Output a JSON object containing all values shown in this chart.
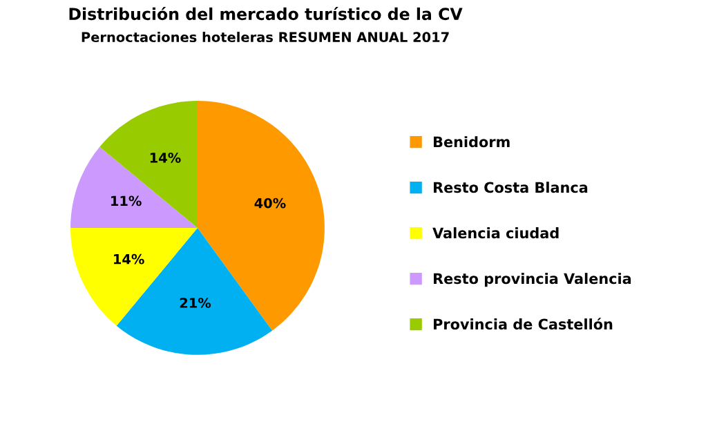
{
  "chart_data": {
    "type": "pie",
    "title": "Distribución del mercado turístico de la CV",
    "subtitle": "Pernoctaciones hoteleras RESUMEN ANUAL 2017",
    "categories": [
      "Benidorm",
      "Resto Costa Blanca",
      "Valencia ciudad",
      "Resto provincia Valencia",
      "Provincia de Castellón"
    ],
    "values": [
      40,
      21,
      14,
      11,
      14
    ],
    "colors": [
      "#ff9900",
      "#00b0f0",
      "#ffff00",
      "#cc99ff",
      "#99cc00"
    ],
    "value_labels": [
      "40%",
      "21%",
      "14%",
      "11%",
      "14%"
    ],
    "legend": "right"
  }
}
